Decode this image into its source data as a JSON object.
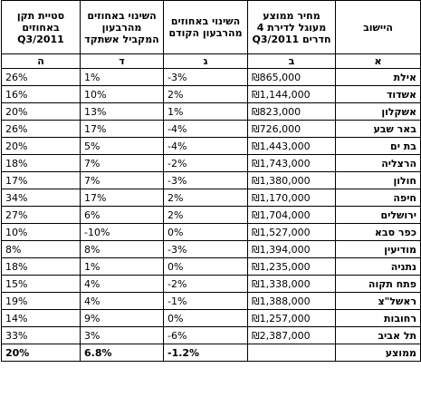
{
  "table": {
    "headers": [
      "היישוב",
      "מחיר ממוצע מעוגל לדירת 4 חדרים Q3/2011",
      "השינוי באחוזים מהרבעון הקודם",
      "השינוי באחוזים מהרבעון המקביל אשתקד",
      "סטיית תקן באחוזים Q3/2011"
    ],
    "letters": [
      "א",
      "ב",
      "ג",
      "ד",
      "ה"
    ],
    "rows": [
      [
        "אילת",
        "₪865,000",
        "-3%",
        "1%",
        "26%"
      ],
      [
        "אשדוד",
        "₪1,144,000",
        "2%",
        "10%",
        "16%"
      ],
      [
        "אשקלון",
        "₪823,000",
        "1%",
        "13%",
        "20%"
      ],
      [
        "באר שבע",
        "₪726,000",
        "-4%",
        "17%",
        "26%"
      ],
      [
        "בת ים",
        "₪1,443,000",
        "-4%",
        "5%",
        "20%"
      ],
      [
        "הרצליה",
        "₪1,743,000",
        "-2%",
        "7%",
        "18%"
      ],
      [
        "חולון",
        "₪1,380,000",
        "-3%",
        "7%",
        "17%"
      ],
      [
        "חיפה",
        "₪1,170,000",
        "2%",
        "17%",
        "34%"
      ],
      [
        "ירושלים",
        "₪1,704,000",
        "2%",
        "6%",
        "27%"
      ],
      [
        "כפר סבא",
        "₪1,527,000",
        "0%",
        "-10%",
        "10%"
      ],
      [
        "מודיעין",
        "₪1,394,000",
        "-3%",
        "8%",
        "8%"
      ],
      [
        "נתניה",
        "₪1,235,000",
        "0%",
        "1%",
        "18%"
      ],
      [
        "פתח תקוה",
        "₪1,338,000",
        "-2%",
        "4%",
        "15%"
      ],
      [
        "ראשל\"צ",
        "₪1,388,000",
        "-1%",
        "4%",
        "19%"
      ],
      [
        "רחובות",
        "₪1,257,000",
        "0%",
        "9%",
        "14%"
      ],
      [
        "תל אביב",
        "₪2,387,000",
        "-6%",
        "3%",
        "33%"
      ]
    ],
    "footer": [
      "ממוצע",
      "",
      "-1.2%",
      "6.8%",
      "20%"
    ]
  }
}
